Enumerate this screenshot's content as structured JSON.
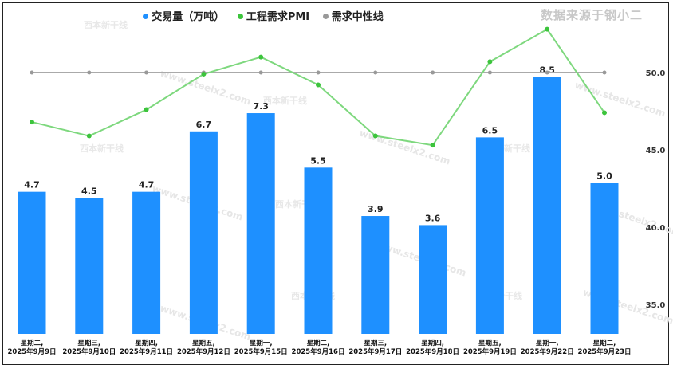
{
  "chart_data": {
    "type": "bar",
    "categories": [
      [
        "星期二,",
        "2025年9月9日"
      ],
      [
        "星期三,",
        "2025年9月10日"
      ],
      [
        "星期四,",
        "2025年9月11日"
      ],
      [
        "星期五,",
        "2025年9月12日"
      ],
      [
        "星期一,",
        "2025年9月15日"
      ],
      [
        "星期二,",
        "2025年9月16日"
      ],
      [
        "星期三,",
        "2025年9月17日"
      ],
      [
        "星期四,",
        "2025年9月18日"
      ],
      [
        "星期五,",
        "2025年9月19日"
      ],
      [
        "星期一,",
        "2025年9月22日"
      ],
      [
        "星期二,",
        "2025年9月23日"
      ]
    ],
    "series": [
      {
        "name": "交易量（万吨）",
        "type": "bar",
        "color": "#1e90ff",
        "values": [
          4.7,
          4.5,
          4.7,
          6.7,
          7.3,
          5.5,
          3.9,
          3.6,
          6.5,
          8.5,
          5.0
        ],
        "data_labels": [
          "4.7",
          "4.5",
          "4.7",
          "6.7",
          "7.3",
          "5.5",
          "3.9",
          "3.6",
          "6.5",
          "8.5",
          "5.0"
        ]
      },
      {
        "name": "工程需求PMI",
        "type": "line",
        "color": "#7ed87e",
        "marker_color": "#3cc43c",
        "values": [
          46.8,
          45.9,
          47.6,
          49.9,
          51.0,
          49.2,
          45.9,
          45.3,
          50.7,
          52.8,
          47.4
        ]
      },
      {
        "name": "需求中性线",
        "type": "line",
        "color": "#aaaaaa",
        "values": [
          50,
          50,
          50,
          50,
          50,
          50,
          50,
          50,
          50,
          50,
          50
        ]
      }
    ],
    "right_axis": {
      "ticks": [
        "50.0",
        "45.0",
        "40.0",
        "35.0"
      ],
      "tick_values": [
        50,
        45,
        40,
        35
      ],
      "ylim": [
        32.5,
        55
      ]
    },
    "bar_axis": {
      "ylim": [
        0,
        10.2
      ]
    },
    "legend_position": "top-center",
    "grid": false
  },
  "source_note": "数据来源于钢小二",
  "watermarks": [
    "www.steelx2.com",
    "西本新干线"
  ]
}
